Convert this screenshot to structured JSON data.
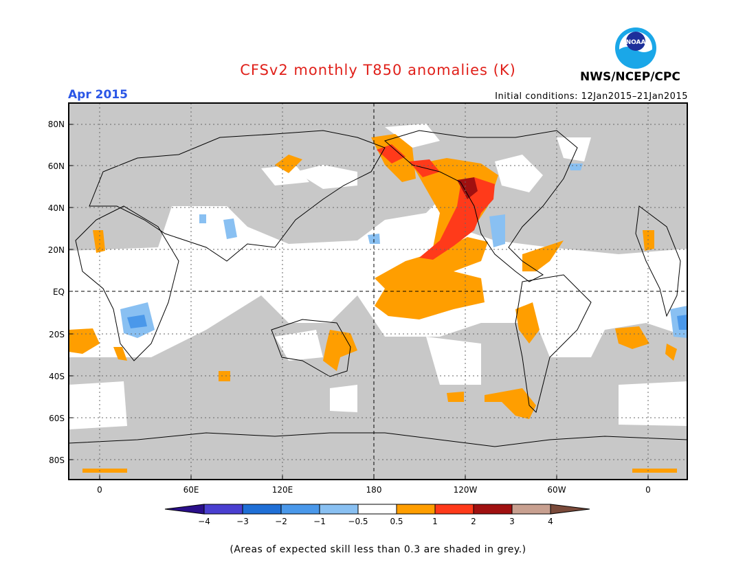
{
  "header": {
    "title": "CFSv2 monthly T850 anomalies (K)",
    "agency": "NWS/NCEP/CPC",
    "logo_text": "NOAA",
    "month": "Apr 2015",
    "initial_conditions": "Initial conditions: 12Jan2015–21Jan2015"
  },
  "map": {
    "lat_labels": [
      "80N",
      "60N",
      "40N",
      "20N",
      "EQ",
      "20S",
      "40S",
      "60S",
      "80S"
    ],
    "lon_labels": [
      "0",
      "60E",
      "120E",
      "180",
      "120W",
      "60W",
      "0"
    ],
    "background_color": "#c8c8c8"
  },
  "legend": {
    "tick_labels": [
      "−4",
      "−3",
      "−2",
      "−1",
      "−0.5",
      "0.5",
      "1",
      "2",
      "3",
      "4"
    ],
    "colors": [
      "#2a0f8a",
      "#4a3fd0",
      "#1f6fd6",
      "#4a98ea",
      "#89c0f2",
      "#ffffff",
      "#ff9e00",
      "#ff3a1a",
      "#a01010",
      "#c8a090",
      "#7a4a3a"
    ]
  },
  "footnote": "(Areas of expected skill less than 0.3 are shaded in grey.)",
  "colors": {
    "title": "#e0201a",
    "month": "#2a56e6",
    "no_skill_grey": "#c8c8c8",
    "warm_orange": "#ff9e00",
    "warm_red": "#ff3a1a",
    "warm_darkred": "#a01010",
    "cool_blue": "#4a98ea"
  }
}
